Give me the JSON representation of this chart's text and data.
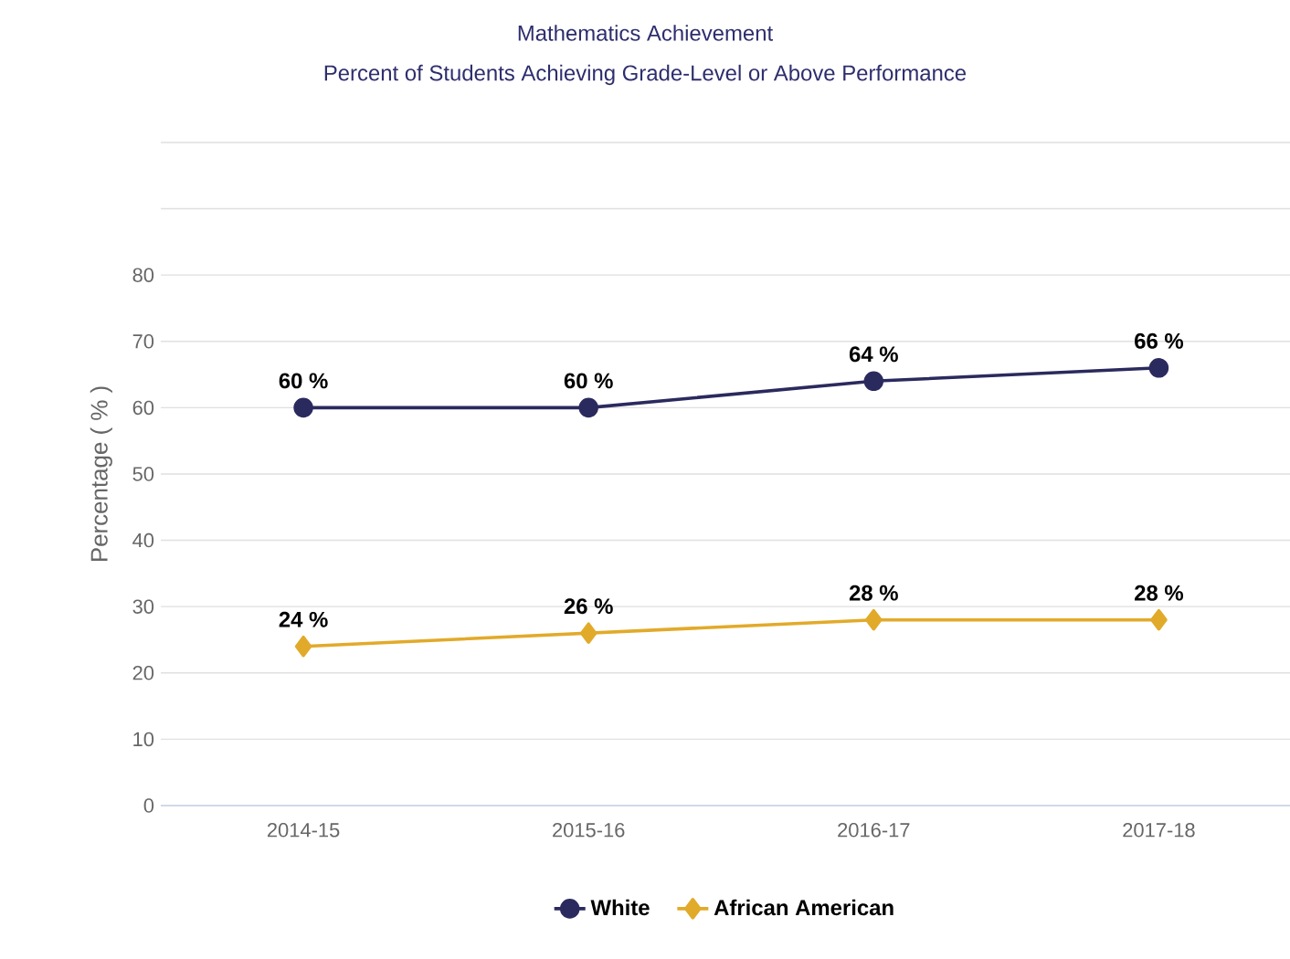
{
  "chart_data": {
    "type": "line",
    "title": "Mathematics Achievement",
    "subtitle": "Percent of Students Achieving Grade-Level or Above Performance",
    "ylabel": "Percentage ( % )",
    "categories": [
      "2014-15",
      "2015-16",
      "2016-17",
      "2017-18"
    ],
    "series": [
      {
        "name": "White",
        "color": "#2b2a5e",
        "marker": "circle",
        "values": [
          60,
          60,
          64,
          66
        ],
        "value_labels": [
          "60 %",
          "60 %",
          "64 %",
          "66 %"
        ]
      },
      {
        "name": "African American",
        "color": "#e2aa2a",
        "marker": "diamond",
        "values": [
          24,
          26,
          28,
          28
        ],
        "value_labels": [
          "24 %",
          "26 %",
          "28 %",
          "28 %"
        ]
      }
    ],
    "ylim": [
      0,
      100
    ],
    "yticks": [
      0,
      10,
      20,
      30,
      40,
      50,
      60,
      70,
      80,
      {
        "value": 90,
        "label": null
      },
      {
        "value": 100,
        "label": null
      }
    ],
    "grid": "y",
    "legend": "bottom"
  }
}
